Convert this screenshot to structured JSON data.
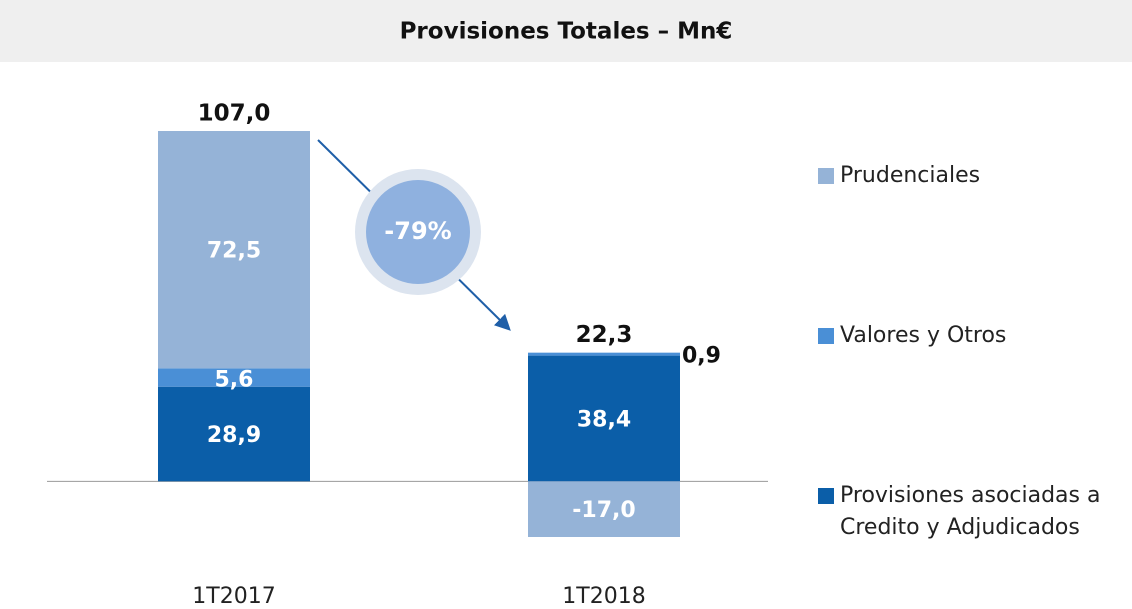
{
  "chart_data": {
    "type": "stacked_bar",
    "title": "Provisiones Totales – Mn€",
    "categories": [
      "1T2017",
      "1T2018"
    ],
    "series": [
      {
        "name": "Provisiones asociadas a Credito y Adjudicados",
        "color": "#0b5ea8",
        "values": [
          28.9,
          38.4
        ],
        "value_labels": [
          "28,9",
          "38,4"
        ]
      },
      {
        "name": "Valores y Otros",
        "color": "#4a8fd6",
        "values": [
          5.6,
          0.9
        ],
        "value_labels": [
          "5,6",
          "0,9"
        ]
      },
      {
        "name": "Prudenciales",
        "color": "#95b3d7",
        "values": [
          72.5,
          -17.0
        ],
        "value_labels": [
          "72,5",
          "-17,0"
        ]
      }
    ],
    "totals": [
      107.0,
      22.3
    ],
    "total_labels": [
      "107,0",
      "22,3"
    ],
    "annotation": "-79%",
    "legend": "right"
  }
}
